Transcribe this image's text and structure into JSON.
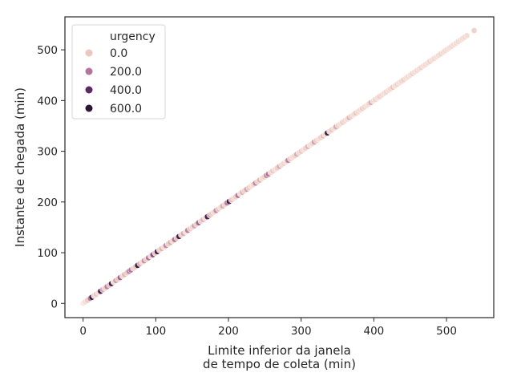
{
  "chart_data": {
    "type": "scatter",
    "title": "",
    "xlabel_lines": [
      "Limite inferior da janela",
      "de tempo de coleta (min)"
    ],
    "ylabel": "Instante de chegada (min)",
    "xlim": [
      -25,
      565
    ],
    "ylim": [
      -28,
      565
    ],
    "xticks": [
      0,
      100,
      200,
      300,
      400,
      500
    ],
    "yticks": [
      0,
      100,
      200,
      300,
      400,
      500
    ],
    "grid": false,
    "legend": {
      "title": "urgency",
      "placement": "top-left",
      "entries": [
        {
          "label": "0.0",
          "color": "#ebc7bd"
        },
        {
          "label": "200.0",
          "color": "#b2759c"
        },
        {
          "label": "400.0",
          "color": "#5a2c63"
        },
        {
          "label": "600.0",
          "color": "#2b1733"
        }
      ]
    },
    "hue_scale": {
      "min": 0,
      "max": 600,
      "colors": [
        "#faebe4",
        "#ebc7bd",
        "#b2759c",
        "#5a2c63",
        "#2b1733"
      ]
    },
    "series": [
      {
        "name": "urgency",
        "points": [
          [
            0,
            0,
            0
          ],
          [
            3,
            3,
            60
          ],
          [
            6,
            6,
            120
          ],
          [
            10,
            10,
            300
          ],
          [
            12,
            12,
            560
          ],
          [
            15,
            15,
            80
          ],
          [
            18,
            18,
            140
          ],
          [
            21,
            21,
            60
          ],
          [
            24,
            24,
            520
          ],
          [
            27,
            27,
            200
          ],
          [
            30,
            30,
            100
          ],
          [
            33,
            33,
            280
          ],
          [
            36,
            36,
            160
          ],
          [
            39,
            39,
            520
          ],
          [
            42,
            42,
            60
          ],
          [
            45,
            45,
            220
          ],
          [
            48,
            48,
            140
          ],
          [
            51,
            51,
            340
          ],
          [
            54,
            54,
            80
          ],
          [
            57,
            57,
            180
          ],
          [
            60,
            60,
            120
          ],
          [
            63,
            63,
            260
          ],
          [
            66,
            66,
            300
          ],
          [
            69,
            69,
            100
          ],
          [
            72,
            72,
            140
          ],
          [
            75,
            75,
            560
          ],
          [
            78,
            78,
            200
          ],
          [
            81,
            81,
            60
          ],
          [
            84,
            84,
            240
          ],
          [
            87,
            87,
            120
          ],
          [
            90,
            90,
            300
          ],
          [
            93,
            93,
            80
          ],
          [
            96,
            96,
            380
          ],
          [
            99,
            99,
            140
          ],
          [
            102,
            102,
            520
          ],
          [
            105,
            105,
            100
          ],
          [
            108,
            108,
            180
          ],
          [
            111,
            111,
            60
          ],
          [
            114,
            114,
            260
          ],
          [
            117,
            117,
            120
          ],
          [
            120,
            120,
            200
          ],
          [
            123,
            123,
            80
          ],
          [
            126,
            126,
            300
          ],
          [
            129,
            129,
            160
          ],
          [
            132,
            132,
            520
          ],
          [
            135,
            135,
            100
          ],
          [
            138,
            138,
            200
          ],
          [
            141,
            141,
            60
          ],
          [
            144,
            144,
            280
          ],
          [
            147,
            147,
            140
          ],
          [
            150,
            150,
            80
          ],
          [
            153,
            153,
            220
          ],
          [
            156,
            156,
            120
          ],
          [
            159,
            159,
            340
          ],
          [
            162,
            162,
            100
          ],
          [
            165,
            165,
            180
          ],
          [
            168,
            168,
            60
          ],
          [
            171,
            171,
            520
          ],
          [
            174,
            174,
            200
          ],
          [
            177,
            177,
            120
          ],
          [
            180,
            180,
            80
          ],
          [
            183,
            183,
            260
          ],
          [
            186,
            186,
            140
          ],
          [
            189,
            189,
            60
          ],
          [
            192,
            192,
            200
          ],
          [
            195,
            195,
            100
          ],
          [
            198,
            198,
            280
          ],
          [
            201,
            201,
            520
          ],
          [
            204,
            204,
            160
          ],
          [
            207,
            207,
            80
          ],
          [
            210,
            210,
            120
          ],
          [
            213,
            213,
            300
          ],
          [
            216,
            216,
            60
          ],
          [
            219,
            219,
            180
          ],
          [
            222,
            222,
            100
          ],
          [
            225,
            225,
            220
          ],
          [
            228,
            228,
            140
          ],
          [
            231,
            231,
            60
          ],
          [
            234,
            234,
            80
          ],
          [
            237,
            237,
            260
          ],
          [
            240,
            240,
            120
          ],
          [
            243,
            243,
            180
          ],
          [
            246,
            246,
            60
          ],
          [
            249,
            249,
            100
          ],
          [
            252,
            252,
            240
          ],
          [
            255,
            255,
            300
          ],
          [
            258,
            258,
            80
          ],
          [
            261,
            261,
            140
          ],
          [
            264,
            264,
            60
          ],
          [
            267,
            267,
            120
          ],
          [
            270,
            270,
            200
          ],
          [
            273,
            273,
            80
          ],
          [
            276,
            276,
            100
          ],
          [
            279,
            279,
            60
          ],
          [
            282,
            282,
            280
          ],
          [
            285,
            285,
            120
          ],
          [
            288,
            288,
            60
          ],
          [
            291,
            291,
            100
          ],
          [
            294,
            294,
            200
          ],
          [
            297,
            297,
            80
          ],
          [
            300,
            300,
            140
          ],
          [
            303,
            303,
            60
          ],
          [
            306,
            306,
            100
          ],
          [
            309,
            309,
            180
          ],
          [
            312,
            312,
            60
          ],
          [
            315,
            315,
            80
          ],
          [
            318,
            318,
            220
          ],
          [
            321,
            321,
            120
          ],
          [
            324,
            324,
            60
          ],
          [
            327,
            327,
            100
          ],
          [
            330,
            330,
            160
          ],
          [
            333,
            333,
            60
          ],
          [
            336,
            336,
            520
          ],
          [
            339,
            339,
            80
          ],
          [
            342,
            342,
            140
          ],
          [
            345,
            345,
            60
          ],
          [
            348,
            348,
            200
          ],
          [
            351,
            351,
            100
          ],
          [
            354,
            354,
            60
          ],
          [
            357,
            357,
            120
          ],
          [
            360,
            360,
            80
          ],
          [
            363,
            363,
            60
          ],
          [
            366,
            366,
            180
          ],
          [
            369,
            369,
            100
          ],
          [
            372,
            372,
            60
          ],
          [
            375,
            375,
            140
          ],
          [
            378,
            378,
            80
          ],
          [
            381,
            381,
            60
          ],
          [
            384,
            384,
            120
          ],
          [
            387,
            387,
            100
          ],
          [
            390,
            390,
            60
          ],
          [
            393,
            393,
            80
          ],
          [
            396,
            396,
            200
          ],
          [
            399,
            399,
            60
          ],
          [
            402,
            402,
            100
          ],
          [
            405,
            405,
            60
          ],
          [
            408,
            408,
            120
          ],
          [
            411,
            411,
            80
          ],
          [
            414,
            414,
            60
          ],
          [
            417,
            417,
            100
          ],
          [
            420,
            420,
            60
          ],
          [
            423,
            423,
            80
          ],
          [
            426,
            426,
            140
          ],
          [
            429,
            429,
            60
          ],
          [
            432,
            432,
            100
          ],
          [
            435,
            435,
            60
          ],
          [
            438,
            438,
            80
          ],
          [
            441,
            441,
            120
          ],
          [
            444,
            444,
            60
          ],
          [
            447,
            447,
            80
          ],
          [
            450,
            450,
            60
          ],
          [
            453,
            453,
            100
          ],
          [
            456,
            456,
            60
          ],
          [
            459,
            459,
            80
          ],
          [
            462,
            462,
            60
          ],
          [
            465,
            465,
            100
          ],
          [
            468,
            468,
            60
          ],
          [
            471,
            471,
            80
          ],
          [
            474,
            474,
            60
          ],
          [
            477,
            477,
            100
          ],
          [
            480,
            480,
            60
          ],
          [
            483,
            483,
            80
          ],
          [
            486,
            486,
            60
          ],
          [
            489,
            489,
            60
          ],
          [
            492,
            492,
            100
          ],
          [
            495,
            495,
            60
          ],
          [
            498,
            498,
            80
          ],
          [
            501,
            501,
            60
          ],
          [
            504,
            504,
            60
          ],
          [
            507,
            507,
            80
          ],
          [
            510,
            510,
            60
          ],
          [
            513,
            513,
            60
          ],
          [
            516,
            516,
            80
          ],
          [
            519,
            519,
            60
          ],
          [
            522,
            522,
            60
          ],
          [
            525,
            525,
            80
          ],
          [
            528,
            528,
            60
          ],
          [
            538,
            538,
            100
          ]
        ]
      }
    ]
  }
}
